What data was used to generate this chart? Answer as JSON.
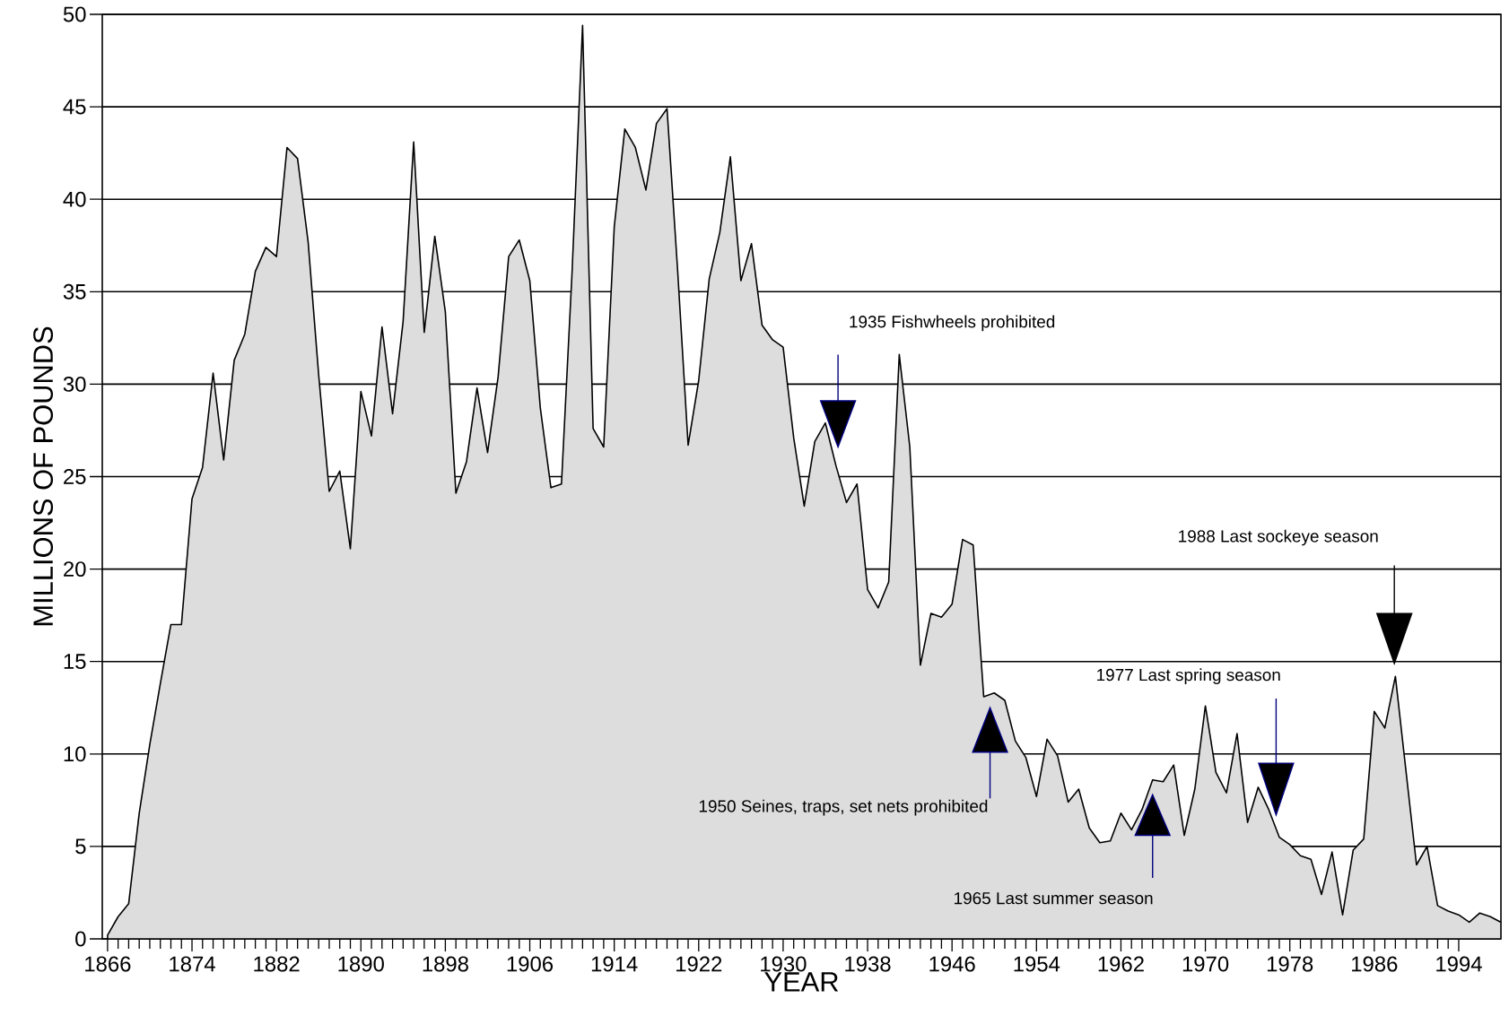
{
  "chart_data": {
    "type": "area",
    "xlabel": "YEAR",
    "ylabel": "MILLIONS OF POUNDS",
    "x": [
      1866,
      1867,
      1868,
      1869,
      1870,
      1871,
      1872,
      1873,
      1874,
      1875,
      1876,
      1877,
      1878,
      1879,
      1880,
      1881,
      1882,
      1883,
      1884,
      1885,
      1886,
      1887,
      1888,
      1889,
      1890,
      1891,
      1892,
      1893,
      1894,
      1895,
      1896,
      1897,
      1898,
      1899,
      1900,
      1901,
      1902,
      1903,
      1904,
      1905,
      1906,
      1907,
      1908,
      1909,
      1910,
      1911,
      1912,
      1913,
      1914,
      1915,
      1916,
      1917,
      1918,
      1919,
      1920,
      1921,
      1922,
      1923,
      1924,
      1925,
      1926,
      1927,
      1928,
      1929,
      1930,
      1931,
      1932,
      1933,
      1934,
      1935,
      1936,
      1937,
      1938,
      1939,
      1940,
      1941,
      1942,
      1943,
      1944,
      1945,
      1946,
      1947,
      1948,
      1949,
      1950,
      1951,
      1952,
      1953,
      1954,
      1955,
      1956,
      1957,
      1958,
      1959,
      1960,
      1961,
      1962,
      1963,
      1964,
      1965,
      1966,
      1967,
      1968,
      1969,
      1970,
      1971,
      1972,
      1973,
      1974,
      1975,
      1976,
      1977,
      1978,
      1979,
      1980,
      1981,
      1982,
      1983,
      1984,
      1985,
      1986,
      1987,
      1988,
      1989,
      1990,
      1991,
      1992,
      1993,
      1994,
      1995,
      1996,
      1997,
      1998
    ],
    "series": [
      {
        "color": "#dddddd",
        "values": [
          0.2,
          1.2,
          1.9,
          6.8,
          10.5,
          13.8,
          17,
          17,
          23.8,
          25.5,
          30.6,
          25.9,
          31.3,
          32.7,
          36.1,
          37.4,
          36.9,
          42.8,
          42.2,
          37.7,
          30.5,
          24.2,
          25.3,
          21.1,
          29.6,
          27.2,
          33.1,
          28.4,
          33.4,
          43.1,
          32.8,
          38.0,
          33.9,
          24.1,
          25.8,
          29.8,
          26.3,
          30.4,
          36.9,
          37.8,
          35.6,
          28.7,
          24.4,
          24.6,
          36.0,
          49.4,
          27.6,
          26.6,
          38.5,
          43.8,
          42.8,
          40.5,
          44.1,
          44.9,
          36.2,
          26.7,
          30.2,
          35.7,
          38.2,
          42.3,
          35.6,
          37.6,
          33.2,
          32.4,
          32.0,
          27.1,
          23.4,
          26.9,
          27.9,
          25.6,
          23.6,
          24.6,
          18.9,
          17.9,
          19.3,
          31.6,
          26.6,
          14.8,
          17.6,
          17.4,
          18.1,
          21.6,
          21.3,
          13.1,
          13.3,
          12.9,
          10.7,
          9.8,
          7.7,
          10.8,
          9.9,
          7.4,
          8.1,
          6.0,
          5.2,
          5.3,
          6.8,
          5.9,
          7.0,
          8.6,
          8.5,
          9.4,
          5.6,
          8.1,
          12.6,
          9.0,
          7.9,
          11.1,
          6.3,
          8.2,
          7.0,
          5.5,
          5.1,
          4.5,
          4.3,
          2.4,
          4.7,
          1.3,
          4.8,
          5.4,
          12.3,
          11.4,
          14.2,
          9.1,
          4.0,
          5.0,
          1.8,
          1.5,
          1.3,
          0.9,
          1.4,
          1.2,
          0.9
        ]
      }
    ],
    "xlim": [
      1865.5,
      1998
    ],
    "ylim": [
      0,
      50
    ],
    "xticks": [
      1866,
      1874,
      1882,
      1890,
      1898,
      1906,
      1914,
      1922,
      1930,
      1938,
      1946,
      1954,
      1962,
      1970,
      1978,
      1986,
      1994
    ],
    "yticks": [
      0,
      5,
      10,
      15,
      20,
      25,
      30,
      35,
      40,
      45,
      50
    ],
    "grid": "y",
    "annotations": [
      "1935 Fishwheels prohibited",
      "1950 Seines, traps, set nets prohibited",
      "1965 Last summer season",
      "1977 Last spring season",
      "1988 Last sockeye season"
    ]
  }
}
